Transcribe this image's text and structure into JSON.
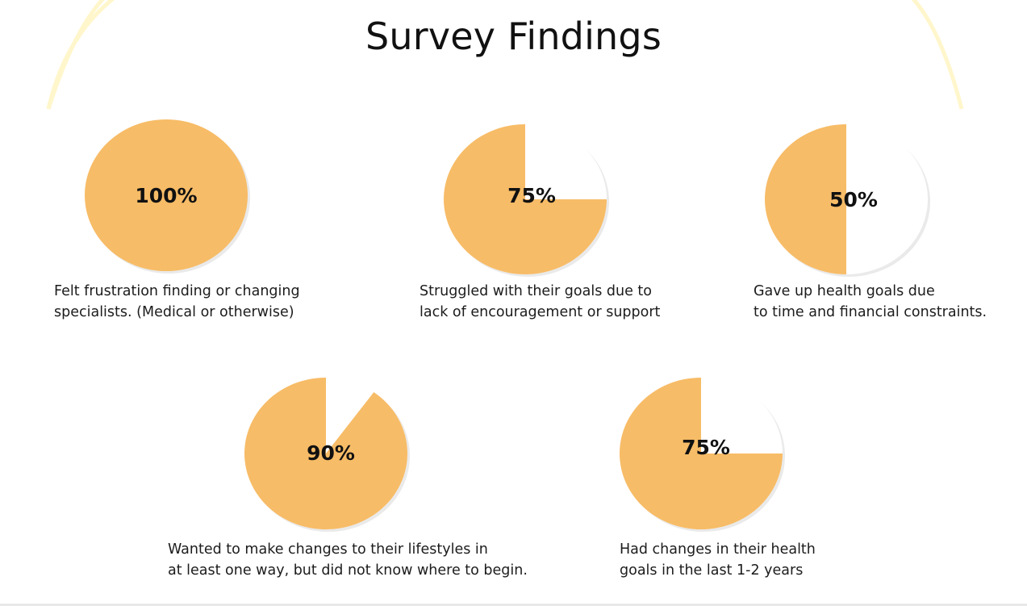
{
  "title": "Survey Findings",
  "colors": {
    "fill": "#F7BC67",
    "remainder": "#FFFFFF",
    "arc": "#FFF6CC"
  },
  "chart_data": [
    {
      "type": "pie",
      "value": 100,
      "label": "100%",
      "caption": [
        "Felt frustration finding or changing",
        "specialists. (Medical or otherwise)"
      ]
    },
    {
      "type": "pie",
      "value": 75,
      "label": "75%",
      "caption": [
        "Struggled with their goals due to",
        "lack of encouragement or support"
      ]
    },
    {
      "type": "pie",
      "value": 50,
      "label": "50%",
      "caption": [
        "Gave up health goals due",
        "to time and financial constraints."
      ]
    },
    {
      "type": "pie",
      "value": 90,
      "label": "90%",
      "caption": [
        "Wanted to make changes to their lifestyles in",
        "at least one way, but did not know where to begin."
      ]
    },
    {
      "type": "pie",
      "value": 75,
      "label": "75%",
      "caption": [
        "Had changes in their health",
        "goals in the last 1-2 years"
      ]
    }
  ]
}
